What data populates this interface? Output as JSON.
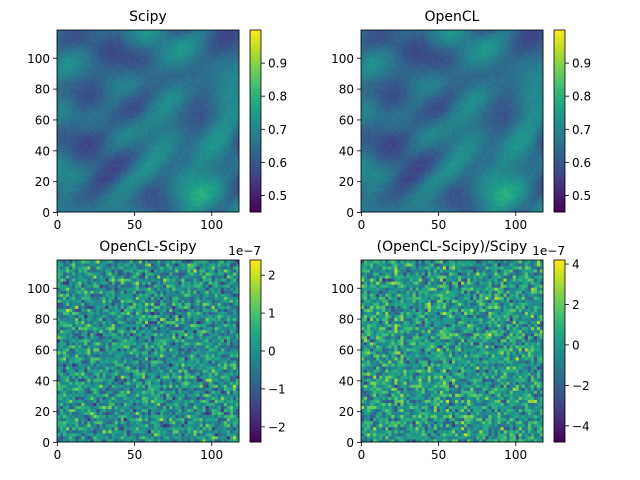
{
  "chart_data": [
    {
      "type": "heatmap",
      "title": "Scipy",
      "colormap": "viridis",
      "xlim": [
        0,
        118
      ],
      "ylim": [
        0,
        118
      ],
      "xticks": [
        0,
        50,
        100
      ],
      "yticks": [
        0,
        20,
        40,
        60,
        80,
        100
      ],
      "colorbar": {
        "vmin": 0.45,
        "vmax": 1.0,
        "ticks": [
          0.5,
          0.6,
          0.7,
          0.8,
          0.9
        ],
        "offset_text": ""
      },
      "field": "smooth",
      "seed": 7,
      "mean": 0.68
    },
    {
      "type": "heatmap",
      "title": "OpenCL",
      "colormap": "viridis",
      "xlim": [
        0,
        118
      ],
      "ylim": [
        0,
        118
      ],
      "xticks": [
        0,
        50,
        100
      ],
      "yticks": [
        0,
        20,
        40,
        60,
        80,
        100
      ],
      "colorbar": {
        "vmin": 0.45,
        "vmax": 1.0,
        "ticks": [
          0.5,
          0.6,
          0.7,
          0.8,
          0.9
        ],
        "offset_text": ""
      },
      "field": "smooth",
      "seed": 7,
      "mean": 0.68
    },
    {
      "type": "heatmap",
      "title": "OpenCL-Scipy",
      "colormap": "viridis",
      "xlim": [
        0,
        118
      ],
      "ylim": [
        0,
        118
      ],
      "xticks": [
        0,
        50,
        100
      ],
      "yticks": [
        0,
        20,
        40,
        60,
        80,
        100
      ],
      "colorbar": {
        "vmin": -2.4,
        "vmax": 2.4,
        "ticks": [
          -2,
          -1,
          0,
          1,
          2
        ],
        "offset_text": "1e−7"
      },
      "field": "noise",
      "seed": 21,
      "mean": 0.0
    },
    {
      "type": "heatmap",
      "title": "(OpenCL-Scipy)/Scipy",
      "colormap": "viridis",
      "xlim": [
        0,
        118
      ],
      "ylim": [
        0,
        118
      ],
      "xticks": [
        0,
        50,
        100
      ],
      "yticks": [
        0,
        20,
        40,
        60,
        80,
        100
      ],
      "colorbar": {
        "vmin": -4.8,
        "vmax": 4.2,
        "ticks": [
          -4,
          -2,
          0,
          2,
          4
        ],
        "offset_text": "1e−7"
      },
      "field": "noise",
      "seed": 43,
      "mean": 0.0
    }
  ]
}
